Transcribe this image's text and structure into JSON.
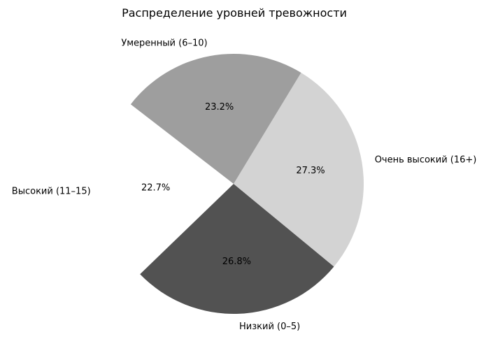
{
  "chart_data": {
    "type": "pie",
    "title": "Распределение уровней тревожности",
    "slices": [
      {
        "label": "Низкий (0–5)",
        "value": 26.8,
        "pct_label": "26.8%",
        "color": "#525252",
        "visible": true
      },
      {
        "label": "Очень высокий (16+)",
        "value": 27.3,
        "pct_label": "27.3%",
        "color": "#d3d3d3",
        "visible": true
      },
      {
        "label": "Умеренный (6–10)",
        "value": 23.2,
        "pct_label": "23.2%",
        "color": "#9e9e9e",
        "visible": true
      },
      {
        "label": "Высокий (11–15)",
        "value": 22.7,
        "pct_label": "22.7%",
        "color": "#ffffff",
        "visible": false
      }
    ],
    "legend": "none"
  }
}
